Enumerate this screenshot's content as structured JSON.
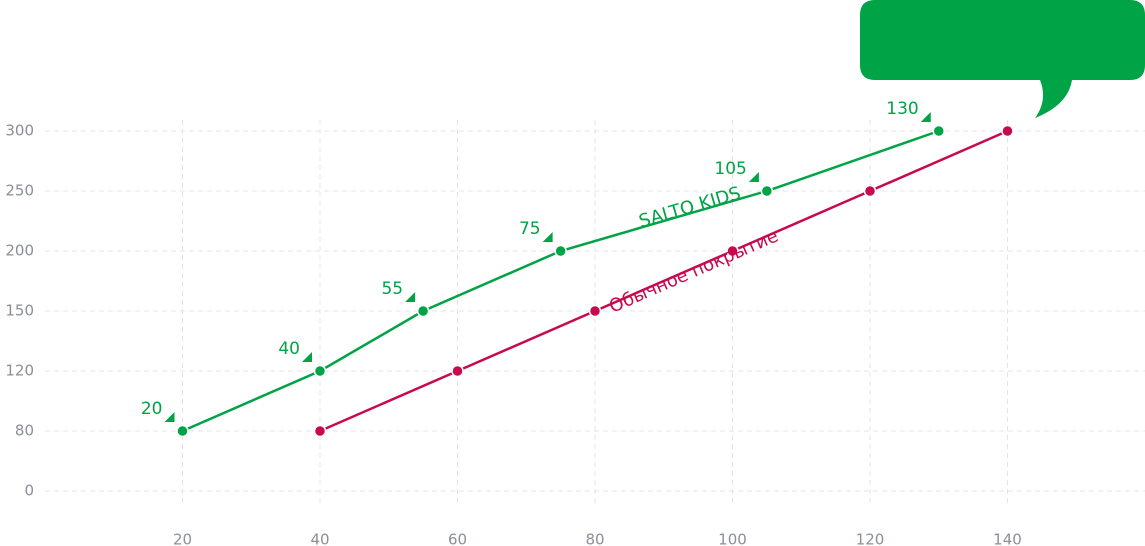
{
  "chart_data": {
    "type": "line",
    "xlim": [
      0,
      160
    ],
    "xticks": [
      20,
      40,
      60,
      80,
      100,
      120,
      140
    ],
    "ylim": [
      0,
      300
    ],
    "yticks": [
      0,
      80,
      120,
      150,
      200,
      250,
      300
    ],
    "grid": true,
    "series": [
      {
        "name": "SALTO KIDS",
        "color": "#00a346",
        "x": [
          20,
          40,
          55,
          75,
          105,
          130
        ],
        "values": [
          80,
          120,
          150,
          200,
          250,
          300
        ]
      },
      {
        "name": "Обычное покрытие",
        "color": "#c9094f",
        "x": [
          40,
          60,
          80,
          100,
          120,
          140
        ],
        "values": [
          80,
          120,
          150,
          200,
          250,
          300
        ]
      }
    ]
  }
}
